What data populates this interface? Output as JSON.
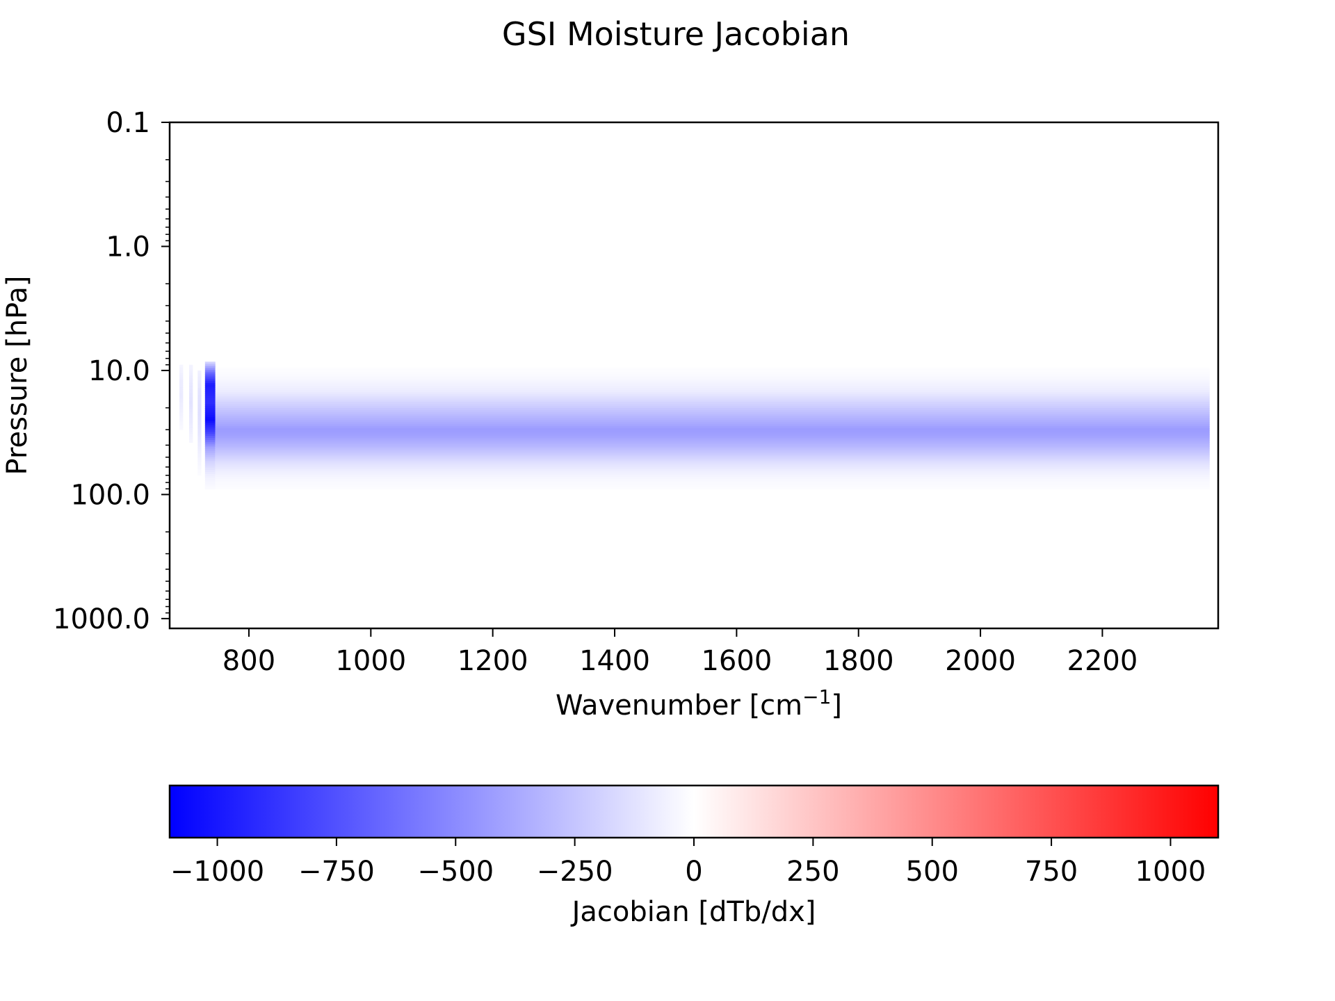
{
  "chart_data": {
    "type": "heatmap",
    "title": "GSI Moisture Jacobian",
    "xlabel": "Wavenumber [cm",
    "xlabel_superscript": "−1",
    "xlabel_suffix": "]",
    "ylabel": "Pressure [hPa]",
    "y_scale": "log",
    "y_inverted": true,
    "xlim": [
      670,
      2390
    ],
    "ylim": [
      0.1,
      1200
    ],
    "x_ticks": [
      800,
      1000,
      1200,
      1400,
      1600,
      1800,
      2000,
      2200
    ],
    "x_tick_labels": [
      "800",
      "1000",
      "1200",
      "1400",
      "1600",
      "1800",
      "2000",
      "2200"
    ],
    "y_ticks": [
      0.1,
      1.0,
      10.0,
      100.0,
      1000.0
    ],
    "y_tick_labels": [
      "0.1",
      "1.0",
      "10.0",
      "100.0",
      "1000.0"
    ],
    "colormap": "bwr",
    "color_low": "#0000ff",
    "color_mid": "#ffffff",
    "color_high": "#ff0000",
    "vlim": [
      -1100,
      1100
    ],
    "colorbar": {
      "label": "Jacobian [dTb/dx]",
      "orientation": "horizontal",
      "placement": "bottom",
      "ticks": [
        -1000,
        -750,
        -500,
        -250,
        0,
        250,
        500,
        750,
        1000
      ],
      "tick_labels": [
        "−1000",
        "−750",
        "−500",
        "−250",
        "0",
        "250",
        "500",
        "750",
        "1000"
      ]
    },
    "bands": [
      {
        "x_start": 686,
        "x_end": 692,
        "p_profile": [
          [
            9,
            -40
          ],
          [
            12,
            -80
          ],
          [
            16,
            -90
          ],
          [
            22,
            -60
          ],
          [
            30,
            -25
          ]
        ]
      },
      {
        "x_start": 702,
        "x_end": 708,
        "p_profile": [
          [
            9,
            -50
          ],
          [
            13,
            -100
          ],
          [
            18,
            -120
          ],
          [
            26,
            -90
          ],
          [
            38,
            -40
          ]
        ]
      },
      {
        "x_start": 716,
        "x_end": 722,
        "p_profile": [
          [
            10,
            -60
          ],
          [
            15,
            -120
          ],
          [
            22,
            -140
          ],
          [
            32,
            -110
          ],
          [
            50,
            -50
          ],
          [
            70,
            -15
          ]
        ]
      },
      {
        "x_start": 728,
        "x_end": 745,
        "p_profile": [
          [
            8.5,
            -150
          ],
          [
            10.5,
            -650
          ],
          [
            13,
            -980
          ],
          [
            18,
            -900
          ],
          [
            25,
            -1050
          ],
          [
            32,
            -800
          ],
          [
            42,
            -400
          ],
          [
            55,
            -180
          ],
          [
            72,
            -60
          ],
          [
            90,
            -20
          ]
        ]
      },
      {
        "x_start": 745,
        "x_end": 2376,
        "p_profile": [
          [
            9.5,
            -8
          ],
          [
            12,
            -35
          ],
          [
            15,
            -90
          ],
          [
            18,
            -180
          ],
          [
            22,
            -280
          ],
          [
            26,
            -360
          ],
          [
            30,
            -430
          ],
          [
            34,
            -400
          ],
          [
            40,
            -320
          ],
          [
            47,
            -230
          ],
          [
            55,
            -140
          ],
          [
            65,
            -70
          ],
          [
            76,
            -30
          ],
          [
            90,
            -10
          ]
        ]
      }
    ]
  }
}
